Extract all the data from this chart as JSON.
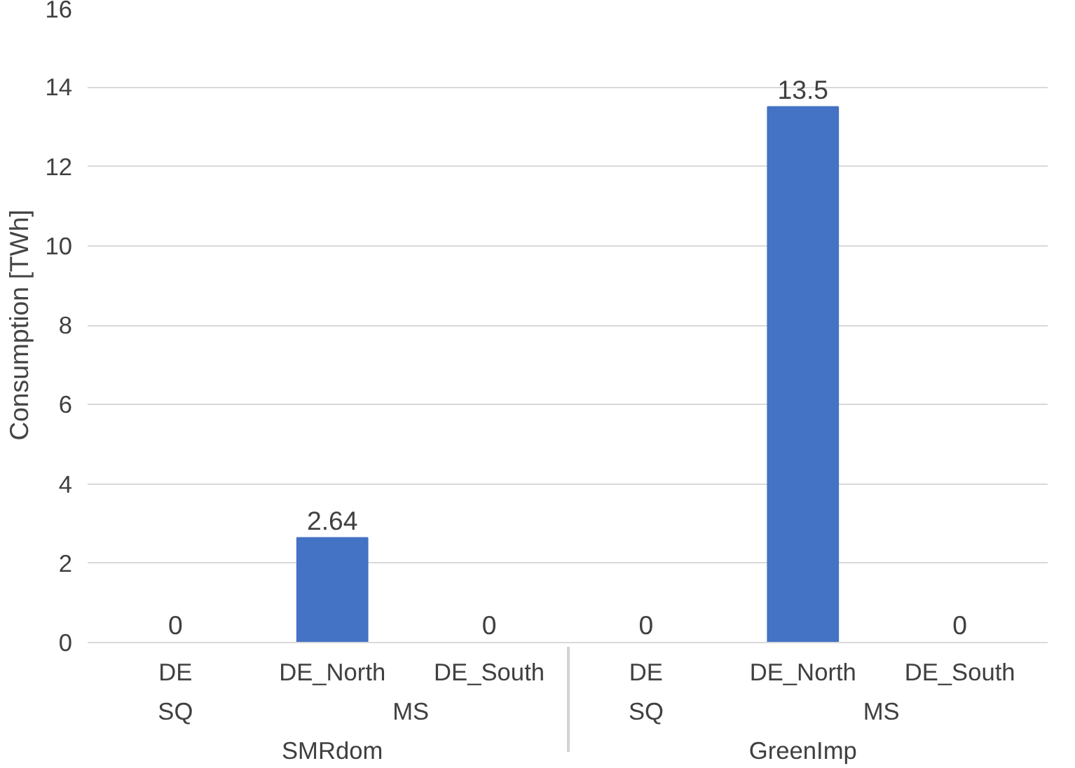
{
  "chart_data": {
    "type": "bar",
    "ylabel": "Consumption [TWh]",
    "categories": [
      [
        "SMRdom",
        "SQ",
        "DE"
      ],
      [
        null,
        "MS",
        "DE_North"
      ],
      [
        null,
        null,
        "DE_South"
      ],
      [
        "GreenImp",
        "SQ",
        "DE"
      ],
      [
        null,
        "MS",
        "DE_North"
      ],
      [
        null,
        null,
        "DE_South"
      ]
    ],
    "values": [
      0,
      2.64,
      0,
      0,
      13.5,
      0
    ],
    "color": "#4472c4",
    "ylim": [
      0,
      16
    ],
    "yticks": [
      0,
      2,
      4,
      6,
      8,
      10,
      12,
      14,
      16
    ],
    "grid": "y",
    "data_labels": true
  }
}
